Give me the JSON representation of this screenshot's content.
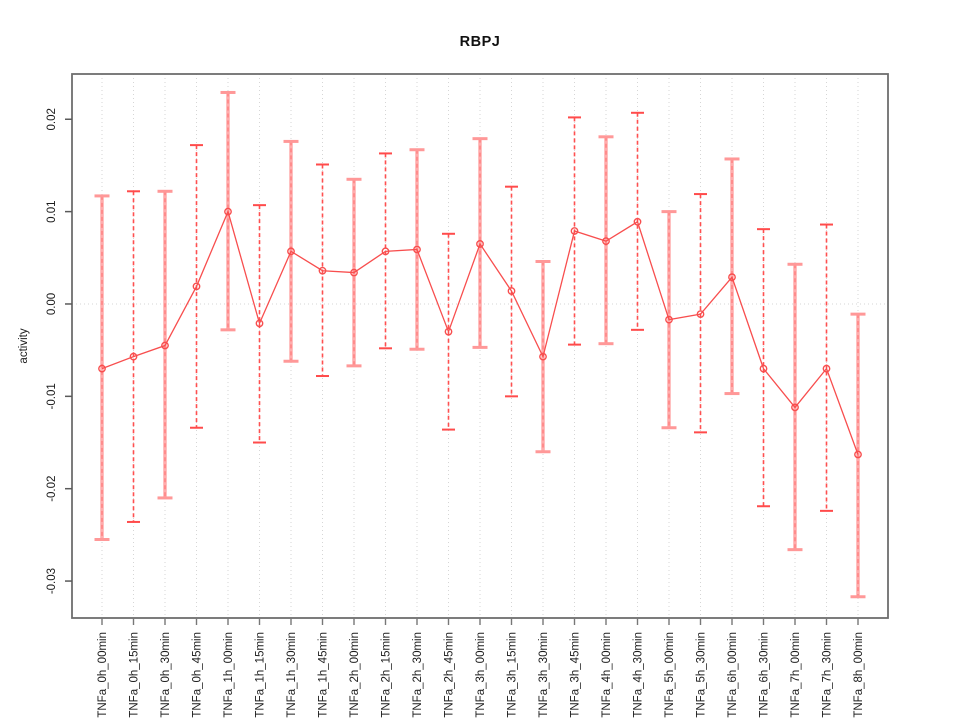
{
  "chart_data": {
    "type": "line",
    "title": "RBPJ",
    "ylabel": "activity",
    "xlabel": "",
    "legend": "none",
    "grid": {
      "vertical": "dotted line at every category",
      "horizontal": "dotted line at y=0 only"
    },
    "yticks": [
      "0.02",
      "0.01",
      "0.00",
      "-0.01",
      "-0.02",
      "-0.03"
    ],
    "ylim": [
      -0.034,
      0.0249
    ],
    "categories": [
      "TNFa_0h_00min",
      "TNFa_0h_15min",
      "TNFa_0h_30min",
      "TNFa_0h_45min",
      "TNFa_1h_00min",
      "TNFa_1h_15min",
      "TNFa_1h_30min",
      "TNFa_1h_45min",
      "TNFa_2h_00min",
      "TNFa_2h_15min",
      "TNFa_2h_30min",
      "TNFa_2h_45min",
      "TNFa_3h_00min",
      "TNFa_3h_15min",
      "TNFa_3h_30min",
      "TNFa_3h_45min",
      "TNFa_4h_00min",
      "TNFa_4h_30min",
      "TNFa_5h_00min",
      "TNFa_5h_30min",
      "TNFa_6h_00min",
      "TNFa_6h_30min",
      "TNFa_7h_00min",
      "TNFa_7h_30min",
      "TNFa_8h_00min"
    ],
    "series": [
      {
        "name": "activity",
        "values": [
          -0.007,
          -0.0057,
          -0.0045,
          0.0019,
          0.01,
          -0.0021,
          0.0057,
          0.0036,
          0.0034,
          0.0057,
          0.0059,
          -0.003,
          0.0065,
          0.0014,
          -0.0057,
          0.0079,
          0.0068,
          0.0089,
          -0.0017,
          -0.0011,
          0.0029,
          -0.007,
          -0.0112,
          -0.007,
          -0.0163
        ],
        "upper": [
          0.0117,
          0.0122,
          0.0122,
          0.0172,
          0.0229,
          0.0107,
          0.0176,
          0.0151,
          0.0135,
          0.0163,
          0.0167,
          0.0076,
          0.0179,
          0.0127,
          0.0046,
          0.0202,
          0.0181,
          0.0207,
          0.01,
          0.0119,
          0.0157,
          0.0081,
          0.0043,
          0.0086,
          -0.0011
        ],
        "lower": [
          -0.0255,
          -0.0236,
          -0.021,
          -0.0134,
          -0.0028,
          -0.015,
          -0.0062,
          -0.0078,
          -0.0067,
          -0.0048,
          -0.0049,
          -0.0136,
          -0.0047,
          -0.01,
          -0.016,
          -0.0044,
          -0.0043,
          -0.0028,
          -0.0134,
          -0.0139,
          -0.0097,
          -0.0219,
          -0.0266,
          -0.0224,
          -0.0317
        ]
      }
    ],
    "colors": {
      "series_red": "#f84e4e",
      "bar_thick_pink": "#ffacac",
      "bar_thick_cap": "#ff9898",
      "bar_thin_red": "#ff5050",
      "gridline": "#d6d6d6",
      "axis_box": "#6e6e6e",
      "text": "#1c1c1c"
    },
    "marker": "open-circle"
  }
}
